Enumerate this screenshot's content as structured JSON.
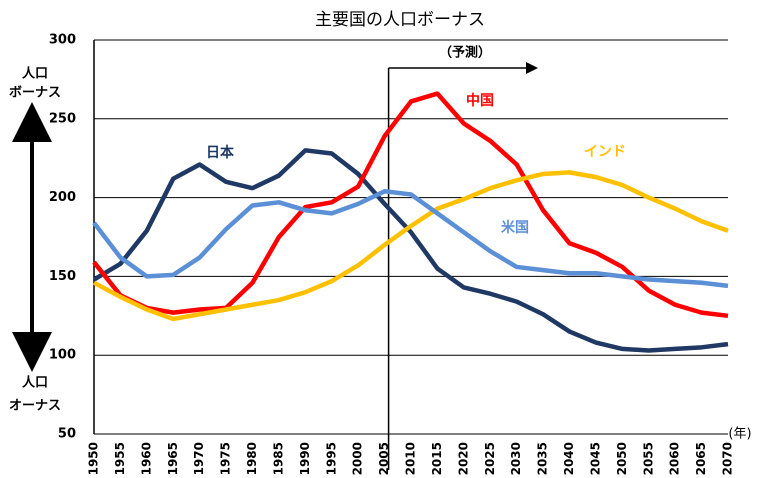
{
  "chart_data": {
    "type": "line",
    "title": "主要国の人口ボーナス",
    "categories": [
      "1950",
      "1955",
      "1960",
      "1965",
      "1970",
      "1975",
      "1980",
      "1985",
      "1990",
      "1995",
      "2000",
      "2005",
      "2010",
      "2015",
      "2020",
      "2025",
      "2030",
      "2035",
      "2040",
      "2045",
      "2050",
      "2055",
      "2060",
      "2065",
      "2070"
    ],
    "x_unit_label": "(年)",
    "forecast_label": "（予測）",
    "upper_label": [
      "人口",
      "ボーナス"
    ],
    "lower_label": [
      "人口",
      "オーナス"
    ],
    "ylim": [
      50,
      300
    ],
    "yticks": [
      50,
      100,
      150,
      200,
      250,
      300
    ],
    "grid": true,
    "series": [
      {
        "name": "日本",
        "color": "#1f3864",
        "values": [
          148,
          158,
          179,
          212,
          221,
          210,
          206,
          214,
          230,
          228,
          215,
          196,
          178,
          155,
          143,
          139,
          134,
          126,
          115,
          108,
          104,
          103,
          104,
          105,
          107
        ]
      },
      {
        "name": "中国",
        "color": "#ff0000",
        "values": [
          159,
          138,
          130,
          127,
          129,
          130,
          146,
          175,
          194,
          197,
          207,
          239,
          261,
          266,
          247,
          236,
          221,
          192,
          171,
          165,
          156,
          141,
          132,
          127,
          125
        ]
      },
      {
        "name": "インド",
        "color": "#ffc000",
        "values": [
          146,
          137,
          129,
          123,
          126,
          129,
          132,
          135,
          140,
          147,
          157,
          170,
          182,
          193,
          199,
          206,
          211,
          215,
          216,
          213,
          208,
          200,
          193,
          185,
          179
        ]
      },
      {
        "name": "米国",
        "color": "#5b8fd6",
        "values": [
          184,
          162,
          150,
          151,
          162,
          180,
          195,
          197,
          192,
          190,
          196,
          204,
          202,
          190,
          178,
          166,
          156,
          154,
          152,
          152,
          150,
          148,
          147,
          146,
          144
        ]
      }
    ]
  }
}
